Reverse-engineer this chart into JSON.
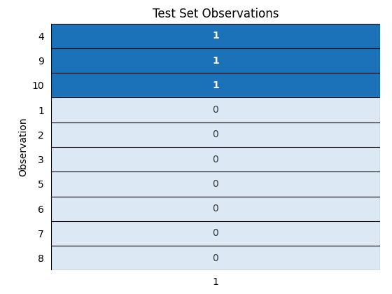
{
  "title": "Test Set Observations",
  "ylabel": "Observation",
  "xlabel": "1",
  "row_labels": [
    "4",
    "9",
    "10",
    "1",
    "2",
    "3",
    "5",
    "6",
    "7",
    "8"
  ],
  "values": [
    [
      1
    ],
    [
      1
    ],
    [
      1
    ],
    [
      0
    ],
    [
      0
    ],
    [
      0
    ],
    [
      0
    ],
    [
      0
    ],
    [
      0
    ],
    [
      0
    ]
  ],
  "color_1": "#1B72B8",
  "color_0": "#DCE9F5",
  "text_color_1": "#FFFFFF",
  "text_color_0": "#333333",
  "title_fontsize": 12,
  "label_fontsize": 10,
  "tick_fontsize": 10,
  "cell_text_fontsize": 10
}
